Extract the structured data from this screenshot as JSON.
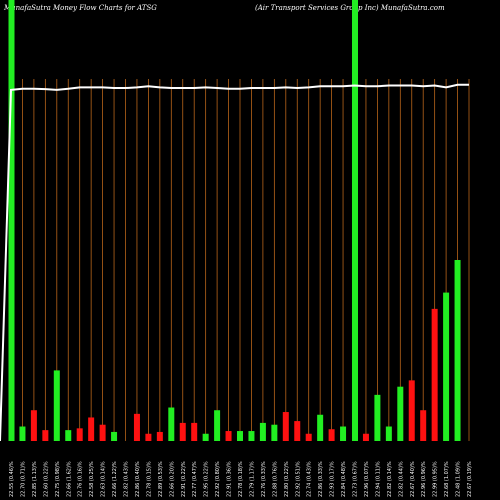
{
  "header": {
    "left_title": "MunafaSutra  Money Flow  Charts for ATSG",
    "right_title": "(Air Transport Services Group  Inc) MunafaSutra.com"
  },
  "colors": {
    "background": "#000000",
    "up": "#22ee22",
    "down": "#ff1111",
    "grid": "#b8651a",
    "line": "#ffffff"
  },
  "chart_data": {
    "type": "bar",
    "x": [
      "22.55 (0.46)%",
      "22.70 (0.71)%",
      "22.85 (1.13)%",
      "22.60 (0.22)%",
      "22.75 (0.98)%",
      "22.66 (1.62)%",
      "22.76 (0.16)%",
      "22.58 (0.25)%",
      "22.63 (0.14)%",
      "22.66 (1.22)%",
      "22.82 (0.43)%",
      "22.86 (0.40)%",
      "22.78 (0.15)%",
      "22.89 (0.53)%",
      "22.66 (0.20)%",
      "22.91 (0.22)%",
      "22.77 (0.47)%",
      "22.95 (0.22)%",
      "22.92 (0.80)%",
      "22.91 (0.36)%",
      "22.78 (0.18)%",
      "22.79 (1.17)%",
      "22.76 (0.33)%",
      "22.88 (0.76)%",
      "22.80 (0.22)%",
      "22.92 (0.51)%",
      "22.74 (0.43)%",
      "22.86 (0.33)%",
      "22.93 (0.17)%",
      "22.84 (0.48)%",
      "22.73 (0.67)%",
      "22.96 (0.07)%",
      "22.94 (0.11)%",
      "22.82 (0.14)%",
      "22.82 (0.44)%",
      "22.67 (0.40)%",
      "22.96 (0.96)%",
      "22.99 (0.95)%",
      "22.68 (1.07)%",
      "22.48 (1.09)%",
      "22.67 (0.19)%"
    ],
    "directions": [
      "up",
      "up",
      "down",
      "down",
      "up",
      "up",
      "down",
      "down",
      "down",
      "up",
      "up",
      "down",
      "down",
      "down",
      "up",
      "down",
      "down",
      "up",
      "up",
      "down",
      "up",
      "up",
      "up",
      "up",
      "down",
      "down",
      "down",
      "up",
      "down",
      "up",
      "up",
      "down",
      "up",
      "up",
      "up",
      "down",
      "down",
      "down",
      "up",
      "up",
      "down"
    ],
    "values": [
      0,
      16,
      34,
      12,
      78,
      12,
      14,
      26,
      18,
      10,
      0,
      30,
      8,
      10,
      37,
      20,
      20,
      8,
      34,
      11,
      11,
      11,
      20,
      18,
      32,
      22,
      8,
      29,
      13,
      16,
      0,
      8,
      51,
      16,
      60,
      67,
      34,
      146,
      164,
      200,
      0
    ],
    "line": [
      0.97,
      0.973,
      0.973,
      0.972,
      0.97,
      0.973,
      0.977,
      0.977,
      0.977,
      0.975,
      0.975,
      0.977,
      0.98,
      0.977,
      0.975,
      0.975,
      0.975,
      0.977,
      0.975,
      0.973,
      0.973,
      0.975,
      0.975,
      0.975,
      0.977,
      0.975,
      0.977,
      0.98,
      0.98,
      0.98,
      0.982,
      0.98,
      0.98,
      0.982,
      0.982,
      0.982,
      0.98,
      0.982,
      0.977,
      0.984,
      0.984
    ],
    "spikes": [
      0,
      30,
      45
    ],
    "ylim": [
      0,
      400
    ]
  }
}
